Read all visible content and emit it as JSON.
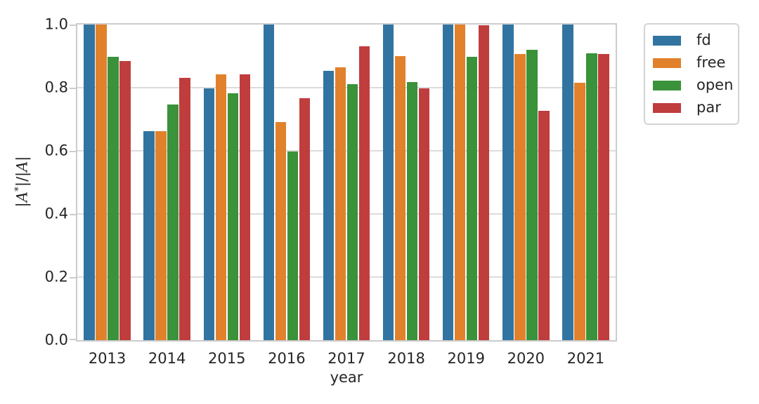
{
  "figure": {
    "background": "#ffffff",
    "text_color": "#262626",
    "spine_color": "#cccccc",
    "grid_color": "#dcdcdc"
  },
  "chart_data": {
    "type": "bar",
    "title": "",
    "xlabel": "year",
    "ylabel": "|𝒜*|/|𝒜|",
    "ylabel_display": {
      "p1": "|",
      "a1": "A",
      "sup": "*",
      "p2": "|/|",
      "a2": "A",
      "p3": "|"
    },
    "categories": [
      "2013",
      "2014",
      "2015",
      "2016",
      "2017",
      "2018",
      "2019",
      "2020",
      "2021"
    ],
    "series": [
      {
        "name": "fd",
        "color": "#3274a1",
        "values": [
          1.0,
          0.663,
          0.798,
          1.0,
          0.853,
          1.0,
          1.0,
          1.0,
          1.0
        ]
      },
      {
        "name": "free",
        "color": "#e1812c",
        "values": [
          1.0,
          0.663,
          0.843,
          0.69,
          0.864,
          0.899,
          1.0,
          0.907,
          0.815
        ]
      },
      {
        "name": "open",
        "color": "#3a923a",
        "values": [
          0.898,
          0.747,
          0.782,
          0.597,
          0.81,
          0.817,
          0.897,
          0.92,
          0.908
        ]
      },
      {
        "name": "par",
        "color": "#c03d3e",
        "values": [
          0.885,
          0.832,
          0.843,
          0.767,
          0.932,
          0.798,
          0.997,
          0.726,
          0.907
        ]
      }
    ],
    "ylim": [
      0.0,
      1.0
    ],
    "yticks": [
      "0.0",
      "0.2",
      "0.4",
      "0.6",
      "0.8",
      "1.0"
    ],
    "grid": true,
    "legend": {
      "position": "outside-upper-right",
      "items": [
        "fd",
        "free",
        "open",
        "par"
      ]
    }
  }
}
